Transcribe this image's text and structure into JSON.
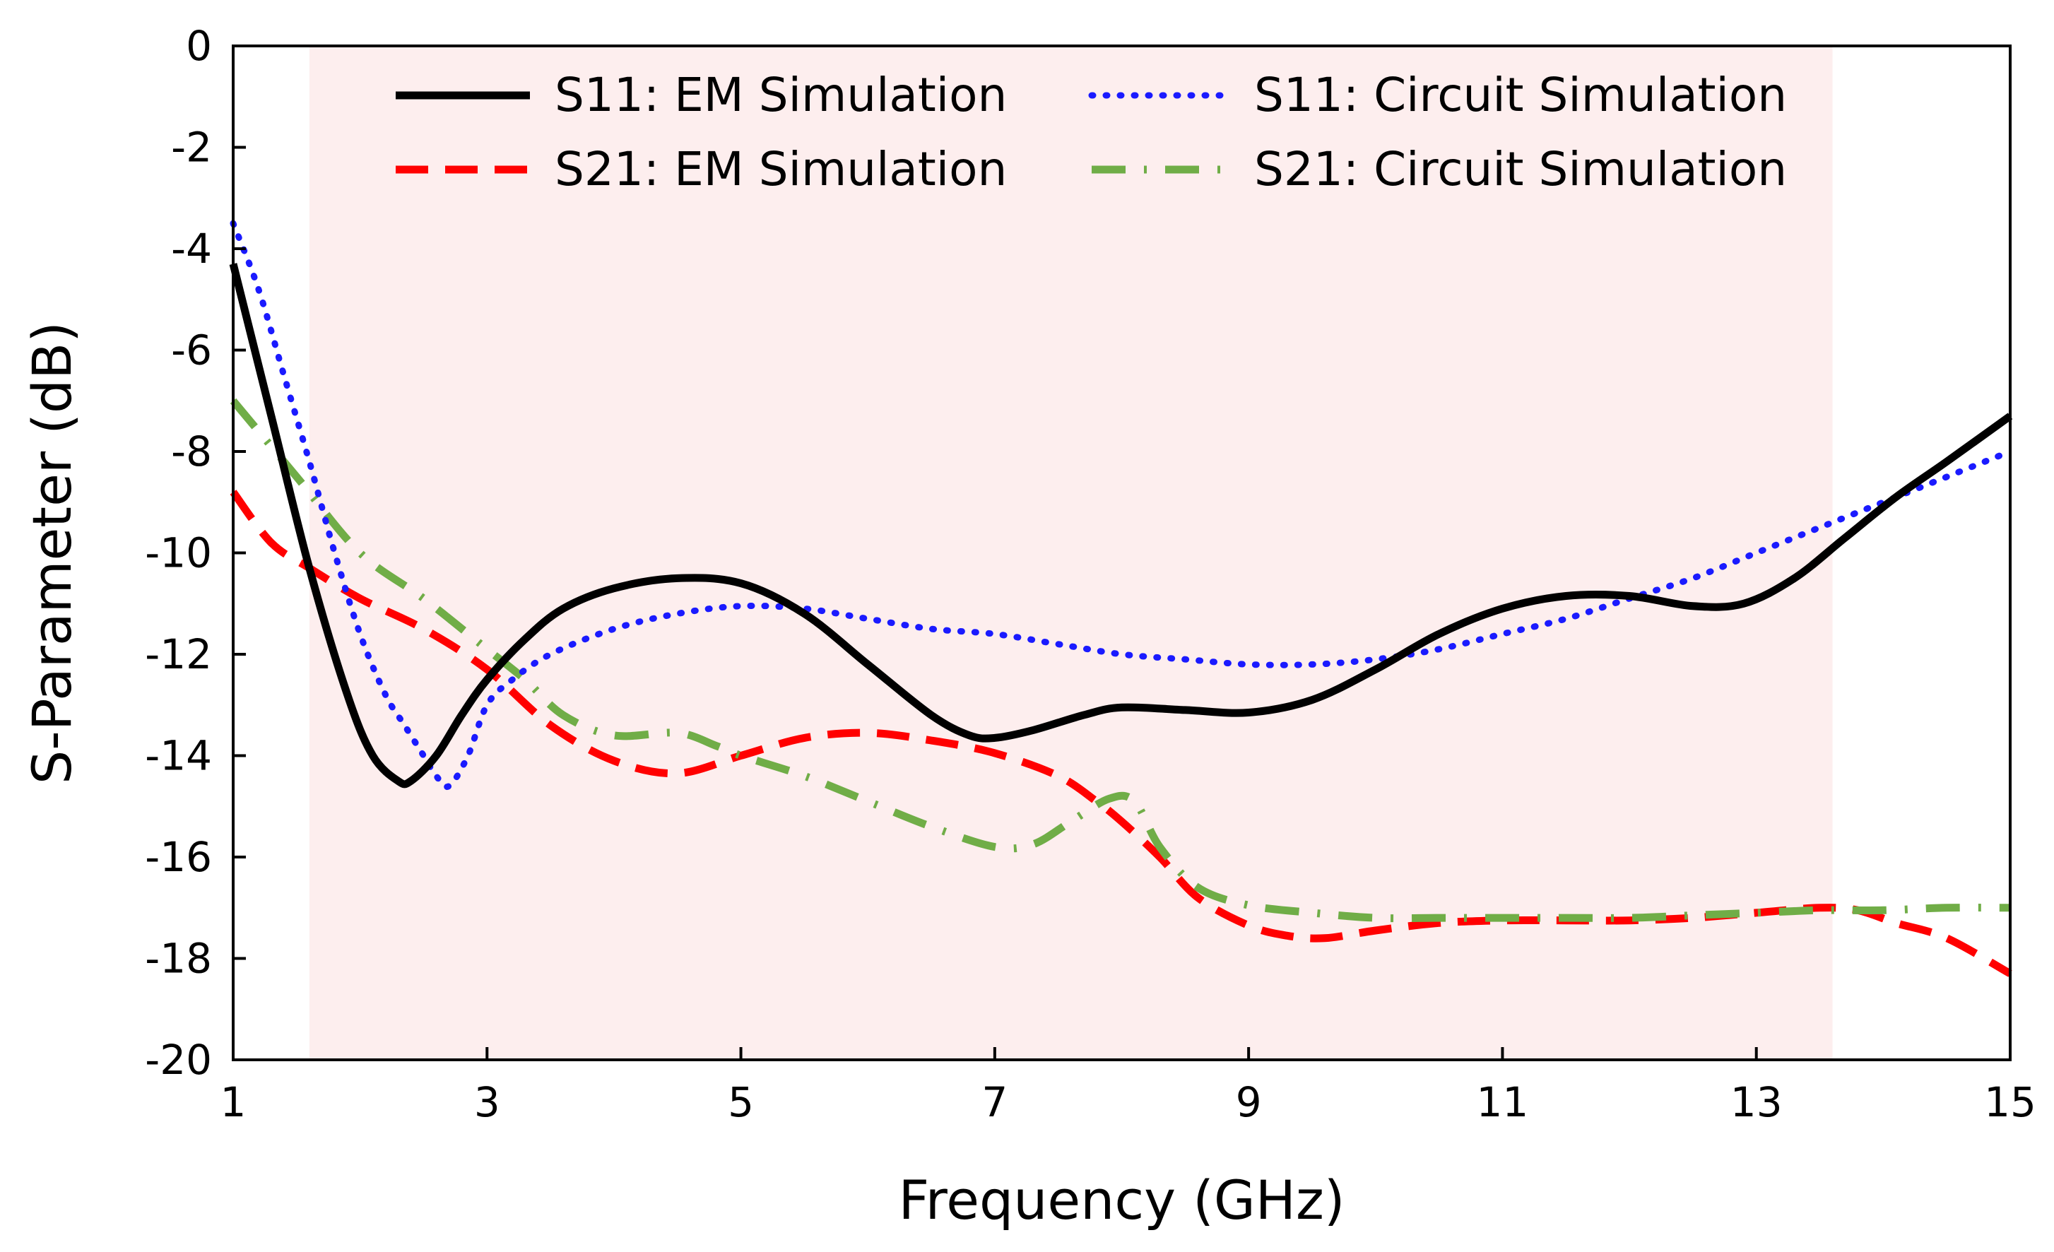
{
  "chart_data": {
    "type": "line",
    "xlabel": "Frequency (GHz)",
    "ylabel": "S-Parameter (dB)",
    "xlim": [
      1,
      15
    ],
    "ylim": [
      -20,
      0
    ],
    "xticks": [
      1,
      3,
      5,
      7,
      9,
      11,
      13,
      15
    ],
    "yticks": [
      0,
      -2,
      -4,
      -6,
      -8,
      -10,
      -12,
      -14,
      -16,
      -18,
      -20
    ],
    "grid": false,
    "legend_position": "top",
    "highlight_band": {
      "x_range": [
        1.6,
        13.6
      ],
      "color": "#fdeeee"
    },
    "series": [
      {
        "name": "S11: EM Simulation",
        "color": "#000000",
        "style": "solid",
        "x": [
          1,
          1.3,
          1.6,
          1.9,
          2.1,
          2.3,
          2.4,
          2.6,
          2.8,
          3.0,
          3.3,
          3.6,
          4.0,
          4.5,
          5.0,
          5.5,
          6.0,
          6.5,
          6.8,
          7.0,
          7.3,
          7.7,
          8.0,
          8.5,
          9.0,
          9.5,
          10.0,
          10.5,
          11.0,
          11.5,
          12.0,
          12.5,
          12.9,
          13.3,
          13.7,
          14.1,
          14.5,
          15.0
        ],
        "y": [
          -4.3,
          -7.3,
          -10.3,
          -12.8,
          -14.0,
          -14.5,
          -14.5,
          -14.0,
          -13.2,
          -12.5,
          -11.7,
          -11.1,
          -10.7,
          -10.5,
          -10.6,
          -11.2,
          -12.2,
          -13.2,
          -13.6,
          -13.65,
          -13.5,
          -13.2,
          -13.05,
          -13.1,
          -13.15,
          -12.9,
          -12.3,
          -11.6,
          -11.1,
          -10.85,
          -10.85,
          -11.05,
          -11.0,
          -10.5,
          -9.7,
          -8.9,
          -8.2,
          -7.3
        ]
      },
      {
        "name": "S11: Circuit Simulation",
        "color": "#1a1aff",
        "style": "dotted",
        "x": [
          1,
          1.2,
          1.4,
          1.6,
          1.8,
          2.0,
          2.2,
          2.35,
          2.5,
          2.6,
          2.7,
          2.85,
          3.0,
          3.2,
          3.5,
          4.0,
          4.5,
          5.0,
          5.5,
          6.0,
          6.5,
          7.0,
          7.5,
          8.0,
          8.5,
          9.0,
          9.5,
          10.0,
          10.5,
          11.0,
          11.5,
          12.0,
          12.5,
          13.0,
          13.5,
          14.0,
          14.5,
          15.0
        ],
        "y": [
          -3.5,
          -4.8,
          -6.5,
          -8.2,
          -10.0,
          -11.6,
          -12.8,
          -13.4,
          -14.0,
          -14.4,
          -14.6,
          -14.0,
          -13.0,
          -12.5,
          -12.0,
          -11.5,
          -11.2,
          -11.05,
          -11.1,
          -11.3,
          -11.5,
          -11.6,
          -11.8,
          -12.0,
          -12.1,
          -12.2,
          -12.2,
          -12.1,
          -11.9,
          -11.6,
          -11.3,
          -10.9,
          -10.5,
          -10.0,
          -9.5,
          -9.0,
          -8.5,
          -8.0
        ]
      },
      {
        "name": "S21: EM Simulation",
        "color": "#ff0000",
        "style": "dashed",
        "x": [
          1,
          1.3,
          1.6,
          2.0,
          2.5,
          3.0,
          3.5,
          4.0,
          4.5,
          5.0,
          5.5,
          6.0,
          6.5,
          7.0,
          7.5,
          7.8,
          8.0,
          8.3,
          8.6,
          9.0,
          9.3,
          9.6,
          10.0,
          10.5,
          11.0,
          11.5,
          12.0,
          12.5,
          13.0,
          13.5,
          13.8,
          14.1,
          14.5,
          15.0
        ],
        "y": [
          -8.8,
          -9.8,
          -10.3,
          -10.9,
          -11.5,
          -12.3,
          -13.4,
          -14.1,
          -14.35,
          -14.0,
          -13.65,
          -13.55,
          -13.7,
          -13.95,
          -14.4,
          -14.9,
          -15.3,
          -16.0,
          -16.8,
          -17.35,
          -17.55,
          -17.6,
          -17.45,
          -17.3,
          -17.25,
          -17.25,
          -17.25,
          -17.2,
          -17.1,
          -17.0,
          -17.05,
          -17.3,
          -17.6,
          -18.3
        ]
      },
      {
        "name": "S21: Circuit Simulation",
        "color": "#70ad47",
        "style": "dashdot",
        "x": [
          1,
          1.5,
          2.0,
          2.5,
          3.0,
          3.3,
          3.6,
          4.0,
          4.5,
          4.8,
          5.0,
          5.5,
          6.0,
          6.5,
          7.0,
          7.3,
          7.6,
          7.9,
          8.1,
          8.3,
          8.6,
          9.0,
          9.5,
          10.0,
          10.5,
          11.0,
          11.5,
          12.0,
          12.5,
          13.0,
          13.5,
          14.0,
          14.5,
          15.0
        ],
        "y": [
          -7.0,
          -8.5,
          -10.0,
          -10.9,
          -11.9,
          -12.5,
          -13.2,
          -13.6,
          -13.55,
          -13.8,
          -14.0,
          -14.4,
          -14.9,
          -15.4,
          -15.8,
          -15.75,
          -15.3,
          -14.85,
          -14.9,
          -15.8,
          -16.6,
          -16.95,
          -17.1,
          -17.2,
          -17.2,
          -17.2,
          -17.2,
          -17.2,
          -17.15,
          -17.1,
          -17.05,
          -17.05,
          -17.0,
          -17.0
        ]
      }
    ]
  }
}
